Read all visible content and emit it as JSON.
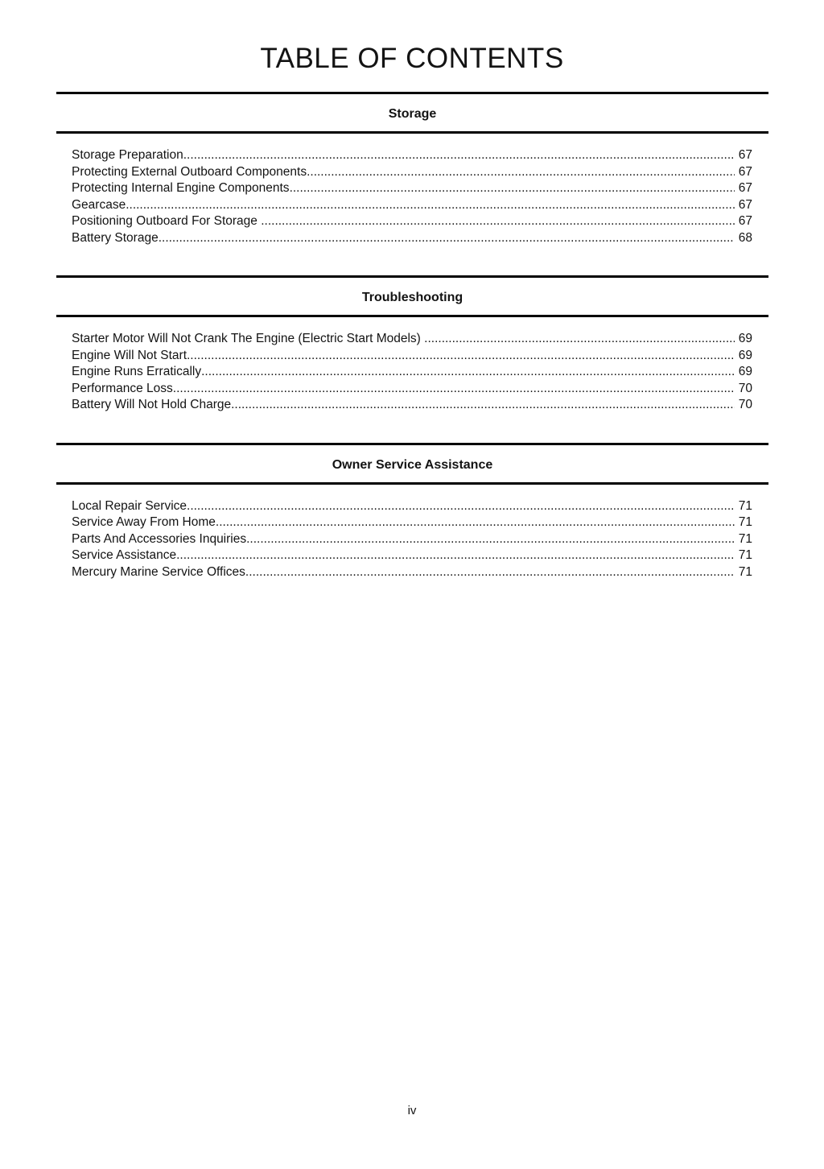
{
  "page": {
    "title": "TABLE OF CONTENTS",
    "footer_page_label": "iv"
  },
  "sections": [
    {
      "heading": "Storage",
      "entries": [
        {
          "label": "Storage Preparation",
          "page": "67"
        },
        {
          "label": "Protecting External Outboard Components",
          "page": "67"
        },
        {
          "label": "Protecting Internal Engine Components",
          "page": "67"
        },
        {
          "label": "Gearcase",
          "page": "67"
        },
        {
          "label": "Positioning Outboard For Storage ",
          "page": "67"
        },
        {
          "label": "Battery Storage",
          "page": "68"
        }
      ]
    },
    {
      "heading": "Troubleshooting",
      "entries": [
        {
          "label": "Starter Motor Will Not Crank The Engine (Electric Start Models) ",
          "page": "69"
        },
        {
          "label": "Engine Will Not Start",
          "page": "69"
        },
        {
          "label": "Engine Runs Erratically",
          "page": "69"
        },
        {
          "label": "Performance Loss",
          "page": "70"
        },
        {
          "label": "Battery Will Not Hold Charge",
          "page": "70"
        }
      ]
    },
    {
      "heading": "Owner Service Assistance",
      "entries": [
        {
          "label": "Local Repair Service",
          "page": "71"
        },
        {
          "label": "Service Away From Home",
          "page": "71"
        },
        {
          "label": "Parts And Accessories Inquiries",
          "page": "71"
        },
        {
          "label": "Service Assistance",
          "page": "71"
        },
        {
          "label": "Mercury Marine Service Offices",
          "page": "71"
        }
      ]
    }
  ]
}
